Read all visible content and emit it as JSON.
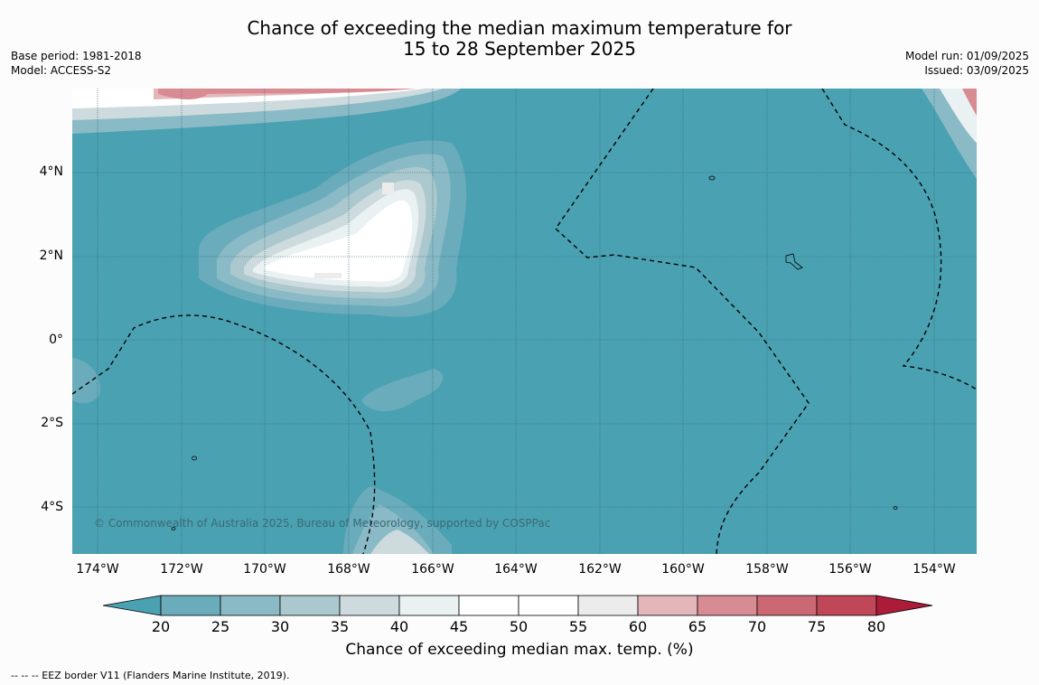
{
  "title_line1": "Chance of exceeding the median maximum temperature for",
  "title_line2": "15 to 28 September 2025",
  "base_period": "Base period: 1981-2018",
  "model": "Model: ACCESS-S2",
  "model_run": "Model run: 01/09/2025",
  "issued": "Issued: 03/09/2025",
  "lat_labels": [
    "4°N",
    "2°N",
    "0°",
    "2°S",
    "4°S"
  ],
  "lon_labels": [
    "174°W",
    "172°W",
    "170°W",
    "168°W",
    "166°W",
    "164°W",
    "162°W",
    "160°W",
    "158°W",
    "156°W",
    "154°W"
  ],
  "copyright": "© Commonwealth of Australia 2025, Bureau of Meteorology, supported by COSPPac",
  "colorbar": {
    "title": "Chance of exceeding median max. temp. (%)",
    "ticks": [
      "20",
      "25",
      "30",
      "35",
      "40",
      "45",
      "50",
      "55",
      "60",
      "65",
      "70",
      "75",
      "80"
    ],
    "colors": [
      "#4aa1b2",
      "#6aacbb",
      "#8abac5",
      "#abc8ce",
      "#cddbde",
      "#eaf1f2",
      "#ffffff",
      "#ffffff",
      "#ececec",
      "#e3b7ba",
      "#d98b93",
      "#cc6873",
      "#c04758",
      "#ac1c38"
    ]
  },
  "footer": "--  --  -- EEZ border V11 (Flanders Marine Institute, 2019)."
}
